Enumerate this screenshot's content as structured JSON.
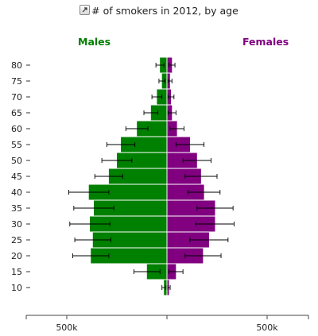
{
  "title": "# of smokers in 2012, by age",
  "icons": {
    "expand": "expand-icon"
  },
  "colors": {
    "males": "#008000",
    "females": "#800080",
    "error_bar": "#000000"
  },
  "chart_data": {
    "type": "bar",
    "orientation": "horizontal",
    "subtype": "population-pyramid",
    "title": "# of smokers in 2012, by age",
    "categories": [
      "10",
      "15",
      "20",
      "25",
      "30",
      "35",
      "40",
      "45",
      "50",
      "55",
      "60",
      "65",
      "70",
      "75",
      "80"
    ],
    "y_tick_labels": [
      "10",
      "15",
      "20",
      "25",
      "30",
      "35",
      "40",
      "45",
      "50",
      "55",
      "60",
      "65",
      "70",
      "75",
      "80"
    ],
    "x_tick_labels": [
      "500k",
      "500k"
    ],
    "xlim": [
      -700000,
      700000
    ],
    "series": [
      {
        "name": "Males",
        "values": [
          15000,
          100000,
          380000,
          370000,
          385000,
          365000,
          390000,
          290000,
          250000,
          230000,
          150000,
          80000,
          50000,
          25000,
          35000
        ],
        "error": [
          10000,
          65000,
          90000,
          90000,
          100000,
          100000,
          100000,
          70000,
          75000,
          70000,
          55000,
          35000,
          25000,
          15000,
          20000
        ]
      },
      {
        "name": "Females",
        "values": [
          10000,
          45000,
          180000,
          210000,
          240000,
          240000,
          185000,
          170000,
          150000,
          115000,
          50000,
          25000,
          20000,
          15000,
          25000
        ],
        "error": [
          6000,
          35000,
          90000,
          95000,
          95000,
          90000,
          80000,
          80000,
          70000,
          70000,
          35000,
          20000,
          15000,
          10000,
          15000
        ]
      }
    ],
    "grid": false,
    "legend": "top"
  }
}
